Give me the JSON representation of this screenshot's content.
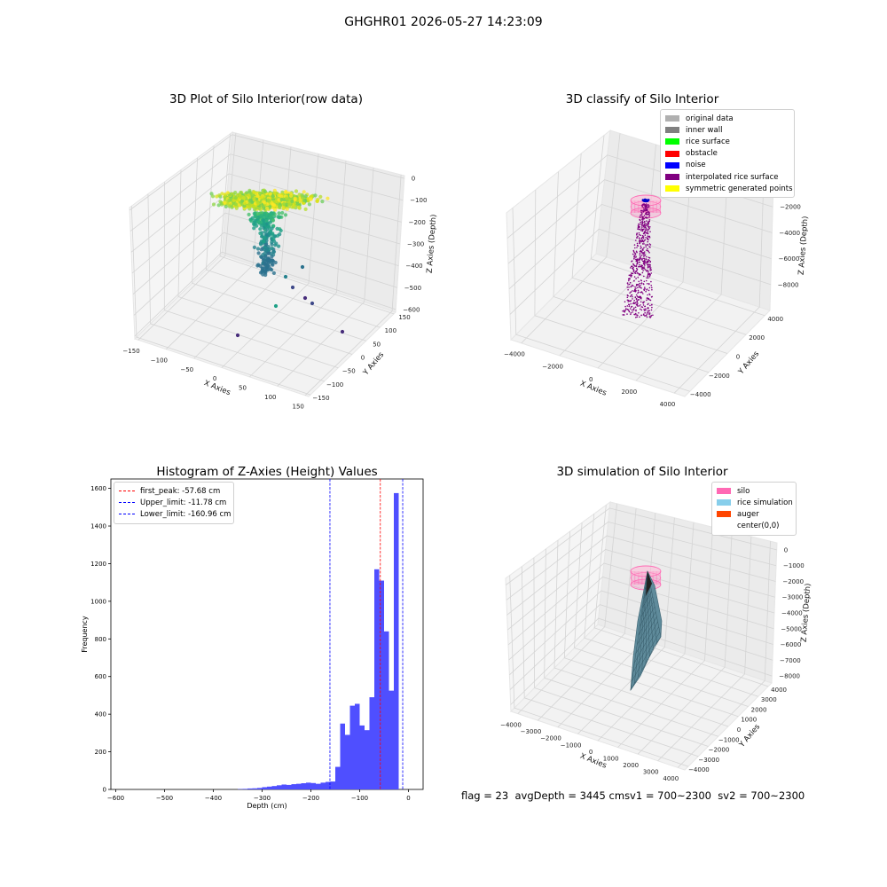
{
  "suptitle": "GHGHR01 2026-05-27 14:23:09",
  "chart_data": [
    {
      "type": "scatter",
      "title": "3D Plot of Silo Interior(row data)",
      "xlabel": "X Axies",
      "ylabel": "Y Axies",
      "zlabel": "Z Axies (Depth)",
      "x_ticks": [
        "−150",
        "−100",
        "−50",
        "0",
        "50",
        "100",
        "150"
      ],
      "y_ticks": [
        "−150",
        "−100",
        "−50",
        "0",
        "50",
        "100",
        "150"
      ],
      "z_ticks": [
        "0",
        "−100",
        "−200",
        "−300",
        "−400",
        "−500",
        "−600"
      ],
      "xlim": [
        -160,
        160
      ],
      "ylim": [
        -160,
        160
      ],
      "zlim": [
        -620,
        0
      ],
      "colormap": "viridis"
    },
    {
      "type": "scatter",
      "title": "3D classify of Silo Interior",
      "xlabel": "X Axies",
      "ylabel": "Y Axies",
      "zlabel": "Z Axies (Depth)",
      "x_ticks": [
        "−4000",
        "−2000",
        "0",
        "2000",
        "4000"
      ],
      "y_ticks": [
        "−4000",
        "−2000",
        "0",
        "2000",
        "4000"
      ],
      "z_ticks": [
        "−2000",
        "−4000",
        "−6000",
        "−8000"
      ],
      "legend_position": "top-right",
      "legend": [
        {
          "label": "original data",
          "color": "#b0b0b0"
        },
        {
          "label": "inner wall",
          "color": "#808080"
        },
        {
          "label": "rice surface",
          "color": "#00ff00"
        },
        {
          "label": "obstacle",
          "color": "#ff0000"
        },
        {
          "label": "noise",
          "color": "#0000ff"
        },
        {
          "label": "interpolated rice surface",
          "color": "#800080"
        },
        {
          "label": "symmetric generated points",
          "color": "#ffff00"
        }
      ]
    },
    {
      "type": "bar",
      "title": "Histogram of Z-Axies (Height) Values",
      "xlabel": "Depth (cm)",
      "ylabel": "Frequency",
      "xlim": [
        -610,
        30
      ],
      "ylim": [
        0,
        1650
      ],
      "x_ticks": [
        -600,
        -500,
        -400,
        -300,
        -200,
        -100,
        0
      ],
      "y_ticks": [
        0,
        200,
        400,
        600,
        800,
        1000,
        1200,
        1400,
        1600
      ],
      "bar_color": "#4b4bff",
      "bin_width": 10,
      "bin_starts": [
        -350,
        -340,
        -330,
        -320,
        -310,
        -300,
        -290,
        -280,
        -270,
        -260,
        -250,
        -240,
        -230,
        -220,
        -210,
        -200,
        -190,
        -180,
        -170,
        -160,
        -150,
        -140,
        -130,
        -120,
        -110,
        -100,
        -90,
        -80,
        -70,
        -60,
        -50,
        -40,
        -30,
        -20,
        -10,
        0
      ],
      "values": [
        2,
        3,
        5,
        6,
        8,
        12,
        15,
        18,
        22,
        26,
        24,
        28,
        30,
        33,
        36,
        34,
        30,
        36,
        40,
        42,
        120,
        350,
        290,
        445,
        455,
        340,
        315,
        490,
        1170,
        1110,
        840,
        525,
        1575,
        0,
        0,
        0
      ],
      "reference_lines": [
        {
          "label": "first_peak: -57.68 cm",
          "value": -57.68,
          "color": "#ff0000"
        },
        {
          "label": "Upper_limit: -11.78 cm",
          "value": -11.78,
          "color": "#0000ff"
        },
        {
          "label": "Lower_limit: -160.96 cm",
          "value": -160.96,
          "color": "#0000ff"
        }
      ],
      "legend_position": "top-left"
    },
    {
      "type": "area",
      "title": "3D simulation of Silo Interior",
      "xlabel": "X Axies",
      "ylabel": "Y Axies",
      "zlabel": "Z Axies (Depth)",
      "x_ticks": [
        "−4000",
        "−3000",
        "−2000",
        "−1000",
        "0",
        "1000",
        "2000",
        "3000",
        "4000"
      ],
      "y_ticks": [
        "−4000",
        "−3000",
        "−2000",
        "−1000",
        "0",
        "1000",
        "2000",
        "3000",
        "4000"
      ],
      "z_ticks": [
        "0",
        "−1000",
        "−2000",
        "−3000",
        "−4000",
        "−5000",
        "−6000",
        "−7000",
        "−8000"
      ],
      "legend_position": "top-right",
      "legend": [
        {
          "label": "silo",
          "color": "#ff69b4"
        },
        {
          "label": "rice simulation",
          "color": "#87ceeb"
        },
        {
          "label": "auger",
          "color": "#ff4500"
        },
        {
          "label": "center(0,0)",
          "color": "#ffffff"
        }
      ]
    }
  ],
  "footer": {
    "flag": "flag = 23",
    "avg": "avgDepth = 3445 cm",
    "sv1": "sv1 = 700~2300",
    "sv2": "sv2 = 700~2300"
  }
}
